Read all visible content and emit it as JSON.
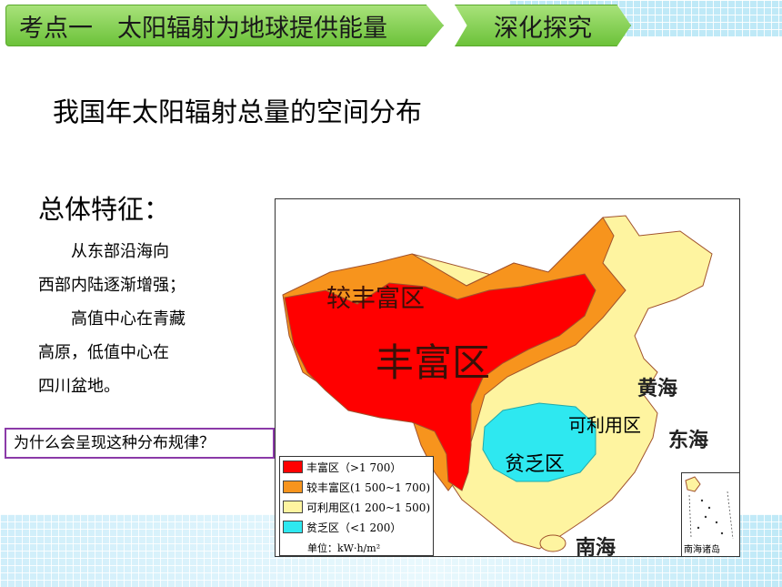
{
  "header": {
    "topic_tab": "考点一　太阳辐射为地球提供能量",
    "section_tab": "深化探究"
  },
  "slide": {
    "title": "我国年太阳辐射总量的空间分布",
    "features_heading": "总体特征：",
    "description_lines": [
      "从东部沿海向",
      "西部内陆逐渐增强；",
      "高值中心在青藏",
      "高原，低值中心在",
      "四川盆地。"
    ],
    "question": "为什么会呈现这种分布规律？"
  },
  "map": {
    "region_labels": {
      "rich": "丰富区",
      "fairly_rich": "较丰富区",
      "usable": "可利用区",
      "poor": "贫乏区"
    },
    "sea_labels": {
      "yellow_sea": "黄海",
      "east_sea": "东海",
      "south_sea": "南海"
    },
    "legend": [
      {
        "label": "丰富区（>1 700）",
        "color": "#ff0000"
      },
      {
        "label": "较丰富区(1 500~1 700)",
        "color": "#f7941d"
      },
      {
        "label": "可利用区(1 200~1 500)",
        "color": "#fef4a0"
      },
      {
        "label": "贫乏区（<1 200）",
        "color": "#2ee8f0"
      }
    ],
    "unit": "单位：kW·h/m²",
    "inset_label": "南海诸岛"
  },
  "colors": {
    "header_green": "#7ccb46",
    "question_border": "#8b3aa8",
    "rich": "#ff0000",
    "fairly_rich": "#f7941d",
    "usable": "#fef4a0",
    "poor": "#2ee8f0"
  }
}
